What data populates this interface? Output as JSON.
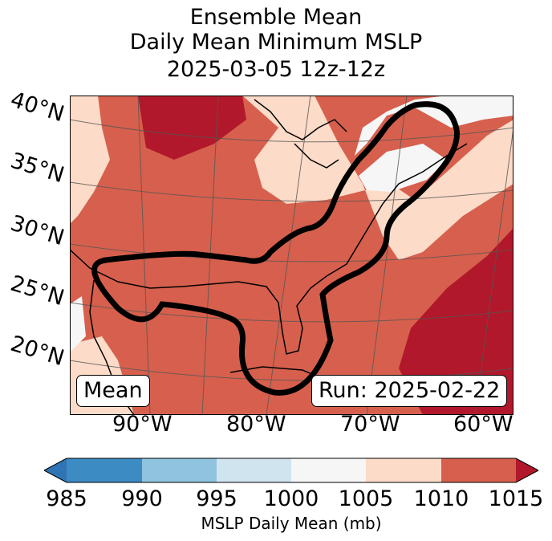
{
  "title": {
    "line1": "Ensemble Mean",
    "line2": "Daily Mean Minimum MSLP",
    "line3": "2025-03-05 12z-12z"
  },
  "map": {
    "lat_labels": [
      "40°N",
      "35°N",
      "30°N",
      "25°N",
      "20°N"
    ],
    "lon_labels": [
      "90°W",
      "80°W",
      "70°W",
      "60°W"
    ],
    "mean_box": "Mean",
    "run_box": "Run: 2025-02-22"
  },
  "colorbar": {
    "label": "MSLP Daily Mean (mb)",
    "ticks": [
      "985",
      "990",
      "995",
      "1000",
      "1005",
      "1010",
      "1015"
    ],
    "colors": [
      "#2f74b5",
      "#3c8bc3",
      "#90c4de",
      "#d0e4f0",
      "#f6f6f6",
      "#fcdbc8",
      "#d6604d",
      "#b2182b"
    ]
  }
}
